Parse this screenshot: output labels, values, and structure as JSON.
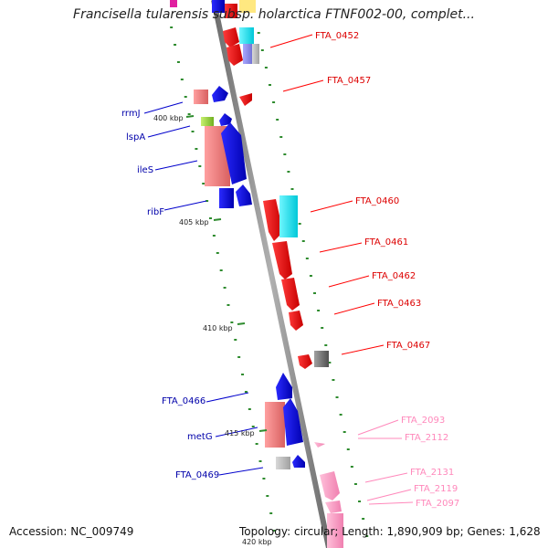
{
  "header": {
    "title": "Francisella tularensis subsp. holarctica FTNF002-00, complet..."
  },
  "footer": {
    "accession": "Accession: NC_009749",
    "summary": "Topology: circular; Length: 1,890,909 bp; Genes: 1,628"
  },
  "colors": {
    "backbone": "#8a8a8a",
    "tick": "#2e8b2e",
    "forward_cds": "#ff0000",
    "reverse_cds": "#0000ff",
    "rrna_like": "#f08080",
    "trna_like": "#00e5ff",
    "other_feature": "#808080",
    "alt_contig": "#ff9ec4"
  },
  "ticks": {
    "kbp_400": "400 kbp",
    "kbp_405": "405 kbp",
    "kbp_410": "410 kbp",
    "kbp_415": "415 kbp",
    "kbp_420": "420 kbp"
  },
  "labels": {
    "fta_0452": "FTA_0452",
    "fta_0457": "FTA_0457",
    "rrmj": "rrmJ",
    "lspa": "lspA",
    "iles": "ileS",
    "ribf": "ribF",
    "fta_0460": "FTA_0460",
    "fta_0461": "FTA_0461",
    "fta_0462": "FTA_0462",
    "fta_0463": "FTA_0463",
    "fta_0467": "FTA_0467",
    "fta_0466": "FTA_0466",
    "metg": "metG",
    "fta_0469": "FTA_0469",
    "fta_2093": "FTA_2093",
    "fta_2112": "FTA_2112",
    "fta_2131": "FTA_2131",
    "fta_2119": "FTA_2119",
    "fta_2097": "FTA_2097"
  }
}
